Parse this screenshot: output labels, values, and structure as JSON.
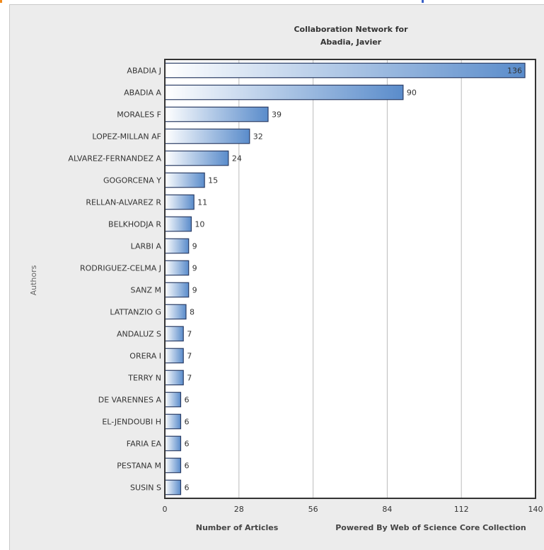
{
  "colors": {
    "bar_dark": "#5a8ccb",
    "bar_light": "#ffffff",
    "bar_stroke": "#2c3e66",
    "grid": "#bbbbbb",
    "accent_orange": "#f08a1c",
    "accent_blue": "#3a62c8"
  },
  "chart_data": {
    "type": "bar",
    "orientation": "horizontal",
    "title": "Collaboration Network for",
    "subtitle": "Abadia, Javier",
    "xlabel": "Number of Articles",
    "ylabel": "Authors",
    "credit": "Powered By Web of Science Core Collection",
    "xlim": [
      0,
      140
    ],
    "xticks": [
      "0",
      "28",
      "56",
      "84",
      "112",
      "140"
    ],
    "grid": "vertical",
    "categories": [
      "ABADIA J",
      "ABADIA A",
      "MORALES F",
      "LOPEZ-MILLAN AF",
      "ALVAREZ-FERNANDEZ A",
      "GOGORCENA Y",
      "RELLAN-ALVAREZ R",
      "BELKHODJA R",
      "LARBI A",
      "RODRIGUEZ-CELMA J",
      "SANZ M",
      "LATTANZIO G",
      "ANDALUZ S",
      "ORERA I",
      "TERRY N",
      "DE VARENNES A",
      "EL-JENDOUBI H",
      "FARIA EA",
      "PESTANA M",
      "SUSIN S"
    ],
    "values": [
      136,
      90,
      39,
      32,
      24,
      15,
      11,
      10,
      9,
      9,
      9,
      8,
      7,
      7,
      7,
      6,
      6,
      6,
      6,
      6
    ]
  }
}
